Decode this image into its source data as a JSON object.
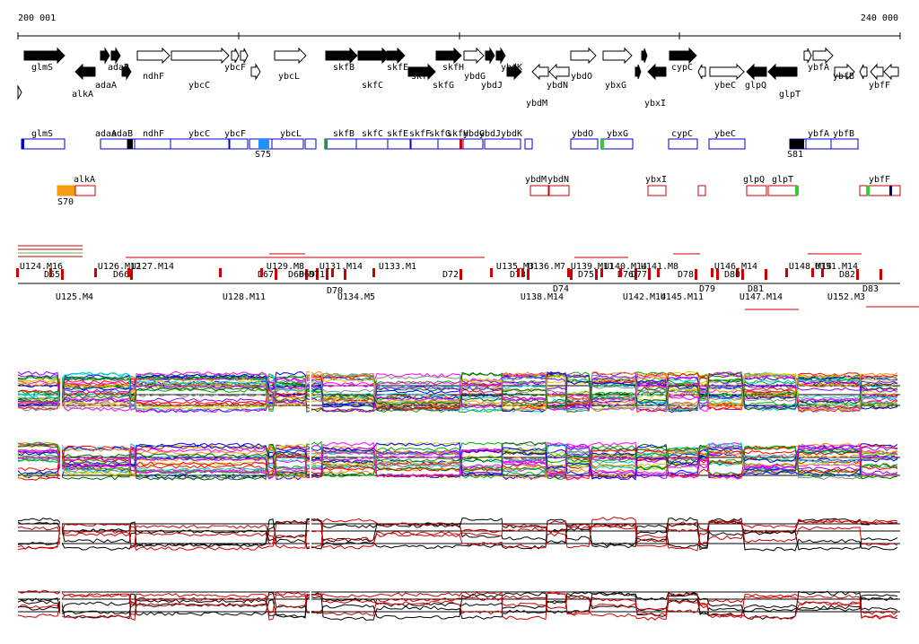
{
  "ruler": {
    "start": "200 001",
    "end": "240 000"
  },
  "genes": [
    "glmS",
    "alkA",
    "adaA",
    "adaB",
    "ndhF",
    "ybcC",
    "ybcF",
    "ybcL",
    "skfB",
    "skfC",
    "skfE",
    "skfF",
    "skfG",
    "skfH",
    "ybdG",
    "ybdJ",
    "ybdK",
    "ybdM",
    "ybdN",
    "ybdO",
    "ybxG",
    "ybxI",
    "cypC",
    "ybeC",
    "glpQ",
    "glpT",
    "ybfA",
    "ybfB",
    "ybfF"
  ],
  "forward_units": [
    "glmS",
    "adaA",
    "adaB",
    "ndhF",
    "ybcC",
    "ybcF",
    "ybcL",
    "skfB",
    "skfC",
    "skfE",
    "skfF",
    "skfG",
    "skfH",
    "ybdG",
    "ybdJ",
    "ybdK",
    "ybdO",
    "ybxG",
    "cypC",
    "ybeC",
    "ybfA",
    "ybfB",
    "S75",
    "S81"
  ],
  "reverse_units": [
    "alkA",
    "S70",
    "ybdM",
    "ybdN",
    "ybxI",
    "glpQ",
    "glpT",
    "ybfF"
  ],
  "segments": [
    "U124.M16",
    "D65",
    "U125.M4",
    "U126.M12",
    "D66",
    "U127.M14",
    "U128.M11",
    "D67",
    "U129.M8",
    "D68",
    "D69",
    "U131.M14",
    "D71",
    "D70",
    "U133.M1",
    "U134.M5",
    "D72",
    "U135.M3",
    "D73",
    "U136.M7",
    "D74",
    "U138.M14",
    "U139.M11",
    "D75",
    "U140.M14",
    "D76",
    "U141.M8",
    "U142.M14",
    "D77",
    "U145.M11",
    "D78",
    "U146.M14",
    "D79",
    "U147.M14",
    "D80",
    "D81",
    "U148.M14",
    "U151.M14",
    "D82",
    "U152.M3",
    "D83"
  ]
}
